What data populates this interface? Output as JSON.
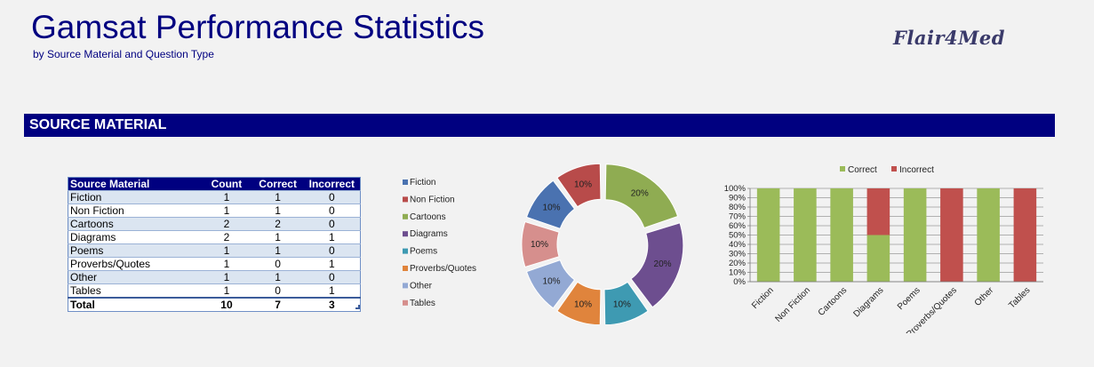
{
  "header": {
    "title": "Gamsat Performance Statistics",
    "subtitle": "by Source Material and Question Type",
    "logo": "Flair4Med"
  },
  "section": {
    "label": "SOURCE MATERIAL"
  },
  "table": {
    "headers": [
      "Source Material",
      "Count",
      "Correct",
      "Incorrect"
    ],
    "rows": [
      {
        "label": "Fiction",
        "count": "1",
        "correct": "1",
        "incorrect": "0"
      },
      {
        "label": "Non Fiction",
        "count": "1",
        "correct": "1",
        "incorrect": "0"
      },
      {
        "label": "Cartoons",
        "count": "2",
        "correct": "2",
        "incorrect": "0"
      },
      {
        "label": "Diagrams",
        "count": "2",
        "correct": "1",
        "incorrect": "1"
      },
      {
        "label": "Poems",
        "count": "1",
        "correct": "1",
        "incorrect": "0"
      },
      {
        "label": "Proverbs/Quotes",
        "count": "1",
        "correct": "0",
        "incorrect": "1"
      },
      {
        "label": "Other",
        "count": "1",
        "correct": "1",
        "incorrect": "0"
      },
      {
        "label": "Tables",
        "count": "1",
        "correct": "0",
        "incorrect": "1"
      }
    ],
    "total": {
      "label": "Total",
      "count": "10",
      "correct": "7",
      "incorrect": "3"
    }
  },
  "chart_data": [
    {
      "type": "pie",
      "variant": "doughnut",
      "categories": [
        "Fiction",
        "Non Fiction",
        "Cartoons",
        "Diagrams",
        "Poems",
        "Proverbs/Quotes",
        "Other",
        "Tables"
      ],
      "values": [
        1,
        1,
        2,
        2,
        1,
        1,
        1,
        1
      ],
      "data_labels": [
        "10%",
        "10%",
        "20%",
        "20%",
        "10%",
        "10%",
        "10%",
        "10%"
      ],
      "colors": [
        "#4a72b0",
        "#b84b4a",
        "#8fac52",
        "#6d4e8f",
        "#3e9ab2",
        "#e0843c",
        "#93a9d4",
        "#d68f8d"
      ],
      "legend": "left"
    },
    {
      "type": "bar",
      "stacked": "percent",
      "categories": [
        "Fiction",
        "Non Fiction",
        "Cartoons",
        "Diagrams",
        "Poems",
        "Proverbs/Quotes",
        "Other",
        "Tables"
      ],
      "series": [
        {
          "name": "Correct",
          "values": [
            1,
            1,
            2,
            1,
            1,
            0,
            1,
            0
          ],
          "color": "#9bbb59"
        },
        {
          "name": "Incorrect",
          "values": [
            0,
            0,
            0,
            1,
            0,
            1,
            0,
            1
          ],
          "color": "#c0504d"
        }
      ],
      "ylim": [
        0,
        100
      ],
      "yticks": [
        "0%",
        "10%",
        "20%",
        "30%",
        "40%",
        "50%",
        "60%",
        "70%",
        "80%",
        "90%",
        "100%"
      ],
      "legend": "top",
      "grid": true
    }
  ]
}
